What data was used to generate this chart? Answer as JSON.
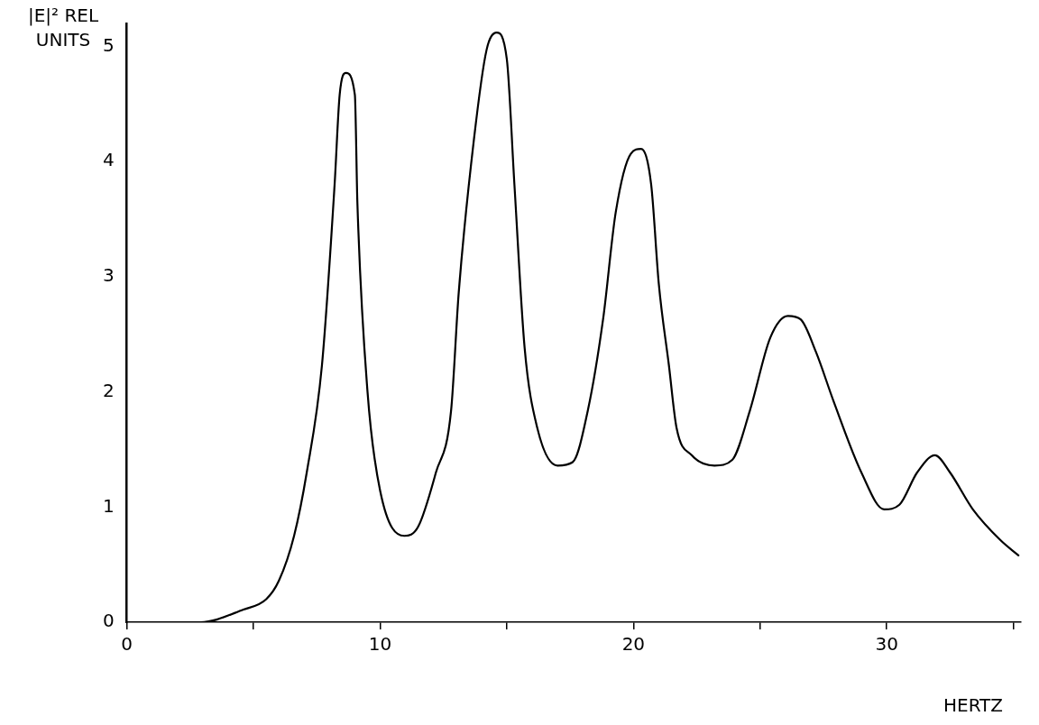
{
  "chart_data": {
    "type": "line",
    "xlabel": "HERTZ",
    "ylabel": "|E|² REL UNITS",
    "xlim": [
      0,
      35.3
    ],
    "ylim": [
      0,
      5.2
    ],
    "xticks": [
      0,
      {
        "value": 5,
        "label": null
      },
      10,
      {
        "value": 15,
        "label": null
      },
      20,
      {
        "value": 25,
        "label": null
      },
      30,
      {
        "value": 35,
        "label": null
      }
    ],
    "yticks": [
      0,
      1,
      2,
      3,
      4,
      5
    ],
    "marker": "none",
    "line_style": "solid",
    "legend": false,
    "series": [
      {
        "color": "#000000",
        "x": [
          0,
          1.3,
          2.9,
          4.6,
          5.5,
          6.0,
          6.6,
          7.1,
          7.7,
          8.2,
          8.4,
          8.65,
          9.0,
          9.1,
          9.5,
          10.0,
          10.95,
          11.5,
          12.2,
          12.8,
          13.1,
          13.7,
          14.2,
          14.6,
          15.0,
          15.3,
          15.7,
          16.2,
          17.0,
          17.6,
          18.2,
          18.8,
          19.3,
          19.9,
          20.3,
          20.7,
          21.0,
          21.4,
          21.7,
          22.3,
          23.2,
          23.9,
          24.6,
          25.4,
          26.1,
          26.6,
          27.2,
          27.9,
          29.0,
          29.9,
          30.5,
          31.2,
          31.9,
          32.5,
          33.4,
          34.5,
          35.2
        ],
        "values": [
          0,
          0,
          0,
          0.11,
          0.2,
          0.36,
          0.75,
          1.3,
          2.23,
          3.8,
          4.58,
          4.77,
          4.58,
          3.64,
          2.0,
          1.14,
          0.75,
          0.83,
          1.3,
          1.84,
          2.86,
          4.19,
          4.97,
          5.12,
          4.89,
          3.8,
          2.39,
          1.69,
          1.36,
          1.39,
          1.84,
          2.63,
          3.56,
          4.07,
          4.11,
          3.8,
          2.94,
          2.23,
          1.69,
          1.45,
          1.36,
          1.41,
          1.84,
          2.47,
          2.66,
          2.63,
          2.35,
          1.92,
          1.3,
          0.98,
          1.02,
          1.3,
          1.45,
          1.3,
          0.98,
          0.71,
          0.58
        ]
      }
    ]
  }
}
